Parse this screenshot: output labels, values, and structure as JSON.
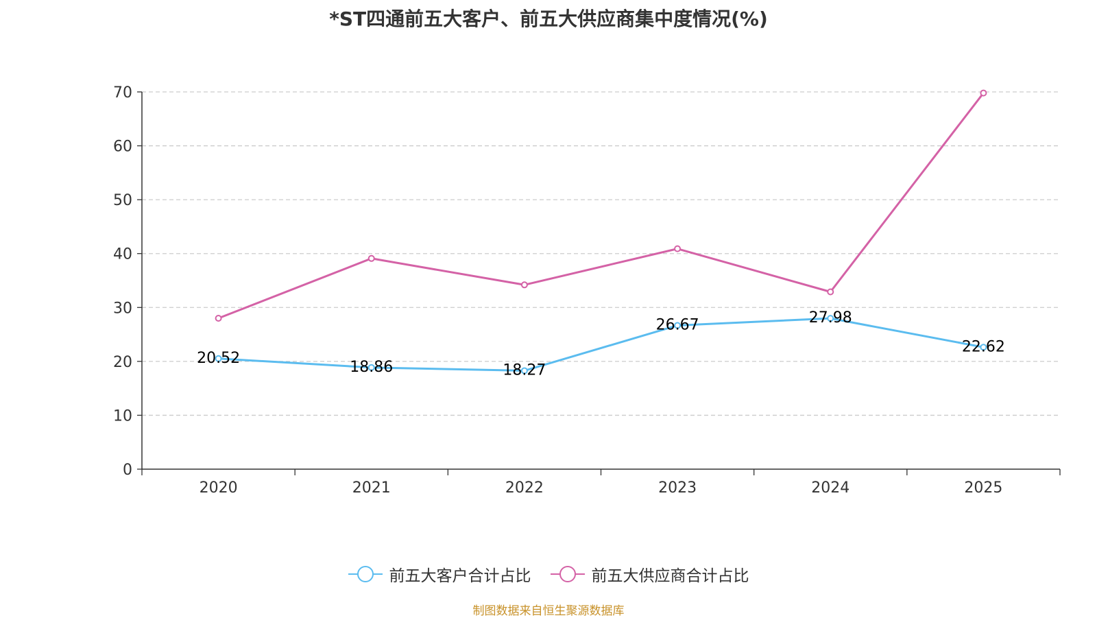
{
  "chart_data": {
    "type": "line",
    "title": "*ST四通前五大客户、前五大供应商集中度情况(%)",
    "xlabel": "",
    "ylabel": "",
    "categories": [
      "2020",
      "2021",
      "2022",
      "2023",
      "2024",
      "2025"
    ],
    "ylim": [
      0,
      70
    ],
    "yticks": [
      0,
      10,
      20,
      30,
      40,
      50,
      60,
      70
    ],
    "grid": true,
    "legend_position": "bottom-center",
    "series": [
      {
        "name": "前五大客户合计占比",
        "color": "#5bbcef",
        "values": [
          20.52,
          18.86,
          18.27,
          26.67,
          27.98,
          22.62
        ],
        "labels": [
          "20.52",
          "18.86",
          "18.27",
          "26.67",
          "27.98",
          "22.62"
        ]
      },
      {
        "name": "前五大供应商合计占比",
        "color": "#d462a6",
        "values": [
          28,
          39.1,
          34.2,
          40.9,
          32.9,
          69.8
        ]
      }
    ]
  },
  "source_note": "制图数据来自恒生聚源数据库"
}
